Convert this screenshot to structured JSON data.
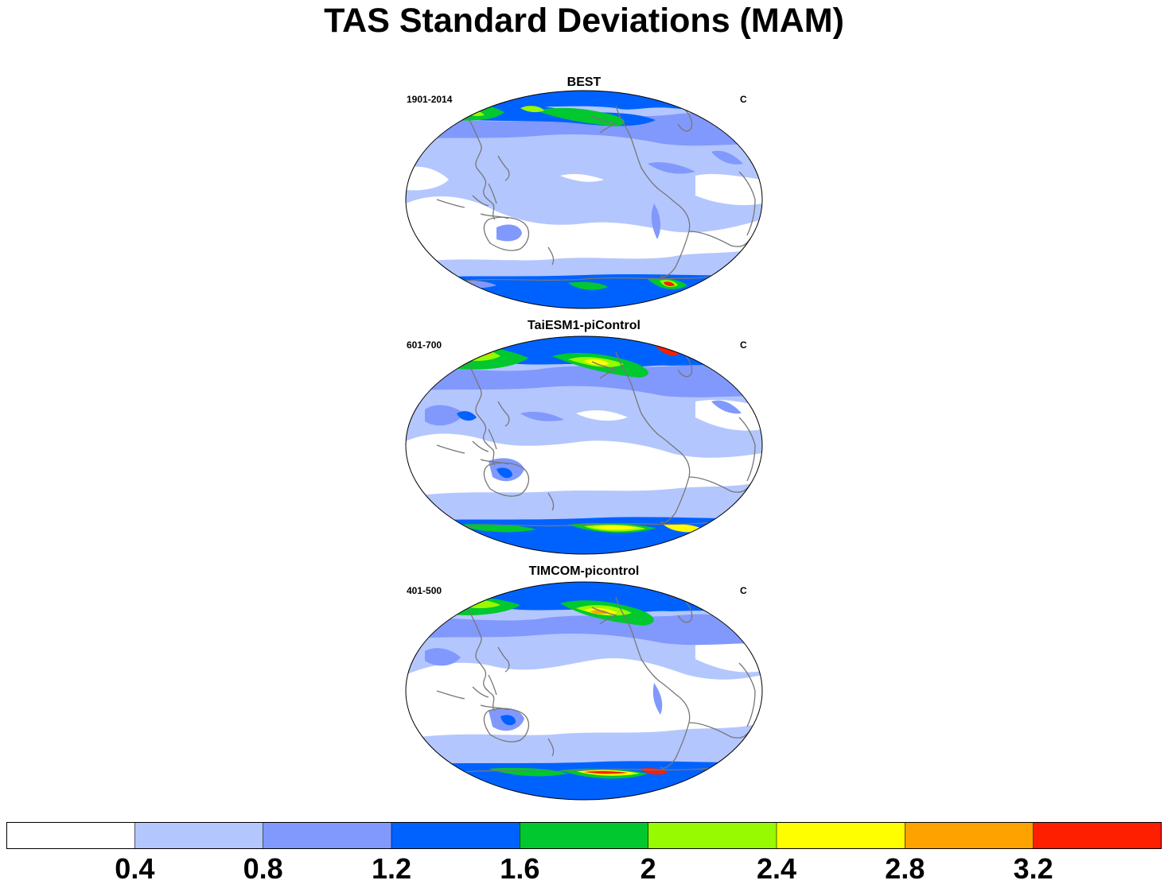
{
  "title": "TAS Standard Deviations (MAM)",
  "panels": [
    {
      "title": "BEST",
      "period": "1901-2014",
      "units": "C"
    },
    {
      "title": "TaiESM1-piControl",
      "period": "601-700",
      "units": "C"
    },
    {
      "title": "TIMCOM-picontrol",
      "period": "401-500",
      "units": "C"
    }
  ],
  "colorbar": {
    "colors": [
      "#ffffff",
      "#b4c6fe",
      "#8199fc",
      "#0062fe",
      "#00c82e",
      "#98fa00",
      "#fefe00",
      "#fea200",
      "#fe1e00"
    ],
    "levels": [
      "0.4",
      "0.8",
      "1.2",
      "1.6",
      "2",
      "2.4",
      "2.8",
      "3.2"
    ]
  },
  "land_color": "#777777"
}
